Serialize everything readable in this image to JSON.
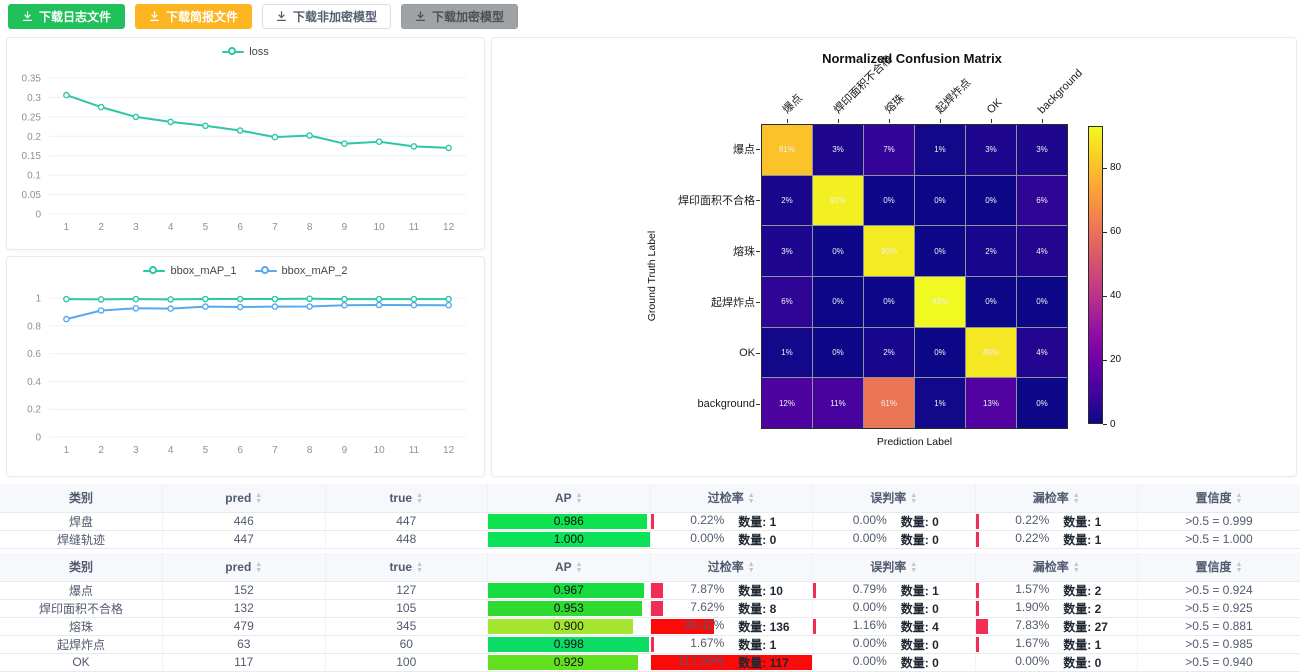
{
  "toolbar": {
    "buttons": [
      {
        "label": "下载日志文件",
        "variant": "success"
      },
      {
        "label": "下载简报文件",
        "variant": "warning"
      },
      {
        "label": "下载非加密模型",
        "variant": "default"
      },
      {
        "label": "下载加密模型",
        "variant": "disabled"
      }
    ]
  },
  "chart_data": [
    {
      "id": "loss",
      "type": "line",
      "x": [
        1,
        2,
        3,
        4,
        5,
        6,
        7,
        8,
        9,
        10,
        11,
        12
      ],
      "series": [
        {
          "name": "loss",
          "color": "#2cc7a3",
          "values": [
            0.306,
            0.275,
            0.25,
            0.237,
            0.227,
            0.215,
            0.198,
            0.202,
            0.181,
            0.186,
            0.174,
            0.17
          ]
        }
      ],
      "ylim": [
        0,
        0.35
      ],
      "yticks": [
        "0",
        "0.05",
        "0.1",
        "0.15",
        "0.2",
        "0.25",
        "0.3",
        "0.35"
      ],
      "legend_position": "top",
      "grid": true
    },
    {
      "id": "bbox_map",
      "type": "line",
      "x": [
        1,
        2,
        3,
        4,
        5,
        6,
        7,
        8,
        9,
        10,
        11,
        12
      ],
      "series": [
        {
          "name": "bbox_mAP_1",
          "color": "#2cc7a3",
          "values": [
            0.992,
            0.99,
            0.992,
            0.99,
            0.993,
            0.993,
            0.993,
            0.994,
            0.992,
            0.992,
            0.992,
            0.992
          ]
        },
        {
          "name": "bbox_mAP_2",
          "color": "#55a9f1",
          "values": [
            0.848,
            0.91,
            0.926,
            0.924,
            0.938,
            0.935,
            0.938,
            0.939,
            0.948,
            0.95,
            0.949,
            0.948
          ]
        }
      ],
      "ylim": [
        0,
        1
      ],
      "yticks": [
        "0",
        "0.2",
        "0.4",
        "0.6",
        "0.8",
        "1"
      ],
      "legend_position": "top",
      "grid": true
    },
    {
      "id": "confusion",
      "type": "heatmap",
      "title": "Normalized Confusion Matrix",
      "xlabel": "Prediction Label",
      "ylabel": "Ground Truth Label",
      "labels": [
        "爆点",
        "焊印面积不合格",
        "熔珠",
        "起焊炸点",
        "OK",
        "background"
      ],
      "matrix": [
        [
          81,
          3,
          7,
          1,
          3,
          3
        ],
        [
          2,
          91,
          0,
          0,
          0,
          6
        ],
        [
          3,
          0,
          90,
          0,
          2,
          4
        ],
        [
          6,
          0,
          0,
          93,
          0,
          0
        ],
        [
          1,
          0,
          2,
          0,
          89,
          4
        ],
        [
          12,
          11,
          61,
          1,
          13,
          0
        ]
      ],
      "unit": "%",
      "vmax": 93,
      "colorbar_ticks": [
        0,
        20,
        40,
        60,
        80
      ],
      "legend_position": "right-colorbar"
    }
  ],
  "tables": {
    "count_label": "数量",
    "columns": [
      {
        "label": "类别",
        "sortable": false
      },
      {
        "label": "pred",
        "sortable": true
      },
      {
        "label": "true",
        "sortable": true
      },
      {
        "label": "AP",
        "sortable": true
      },
      {
        "label": "过检率",
        "sortable": true
      },
      {
        "label": "误判率",
        "sortable": true
      },
      {
        "label": "漏检率",
        "sortable": true
      },
      {
        "label": "置信度",
        "sortable": true
      }
    ],
    "table1_rows": [
      {
        "category": "焊盘",
        "pred": 446,
        "truth": 447,
        "ap": 0.986,
        "ap_color": "#0ee24e",
        "over": {
          "pct": 0.22,
          "count": 1
        },
        "mis": {
          "pct": 0.0,
          "count": 0
        },
        "miss": {
          "pct": 0.22,
          "count": 1
        },
        "confidence": ">0.5 = 0.999"
      },
      {
        "category": "焊缝轨迹",
        "pred": 447,
        "truth": 448,
        "ap": 1.0,
        "ap_color": "#0ce257",
        "over": {
          "pct": 0.0,
          "count": 0
        },
        "mis": {
          "pct": 0.0,
          "count": 0
        },
        "miss": {
          "pct": 0.22,
          "count": 1
        },
        "confidence": ">0.5 = 1.000"
      }
    ],
    "table2_rows": [
      {
        "category": "爆点",
        "pred": 152,
        "truth": 127,
        "ap": 0.967,
        "ap_color": "#17dc40",
        "over": {
          "pct": 7.87,
          "count": 10
        },
        "mis": {
          "pct": 0.79,
          "count": 1
        },
        "miss": {
          "pct": 1.57,
          "count": 2
        },
        "confidence": ">0.5 = 0.924"
      },
      {
        "category": "焊印面积不合格",
        "pred": 132,
        "truth": 105,
        "ap": 0.953,
        "ap_color": "#30db31",
        "over": {
          "pct": 7.62,
          "count": 8
        },
        "mis": {
          "pct": 0.0,
          "count": 0
        },
        "miss": {
          "pct": 1.9,
          "count": 2
        },
        "confidence": ">0.5 = 0.925"
      },
      {
        "category": "熔珠",
        "pred": 479,
        "truth": 345,
        "ap": 0.9,
        "ap_color": "#a3e52f",
        "over": {
          "pct": 39.42,
          "count": 136
        },
        "mis": {
          "pct": 1.16,
          "count": 4
        },
        "miss": {
          "pct": 7.83,
          "count": 27
        },
        "confidence": ">0.5 = 0.881"
      },
      {
        "category": "起焊炸点",
        "pred": 63,
        "truth": 60,
        "ap": 0.998,
        "ap_color": "#0cdb64",
        "over": {
          "pct": 1.67,
          "count": 1
        },
        "mis": {
          "pct": 0.0,
          "count": 0
        },
        "miss": {
          "pct": 1.67,
          "count": 1
        },
        "confidence": ">0.5 = 0.985"
      },
      {
        "category": "OK",
        "pred": 117,
        "truth": 100,
        "ap": 0.929,
        "ap_color": "#62df1f",
        "over": {
          "pct": 117.0,
          "count": 117
        },
        "mis": {
          "pct": 0.0,
          "count": 0
        },
        "miss": {
          "pct": 0.0,
          "count": 0
        },
        "confidence": ">0.5 = 0.940"
      }
    ]
  }
}
